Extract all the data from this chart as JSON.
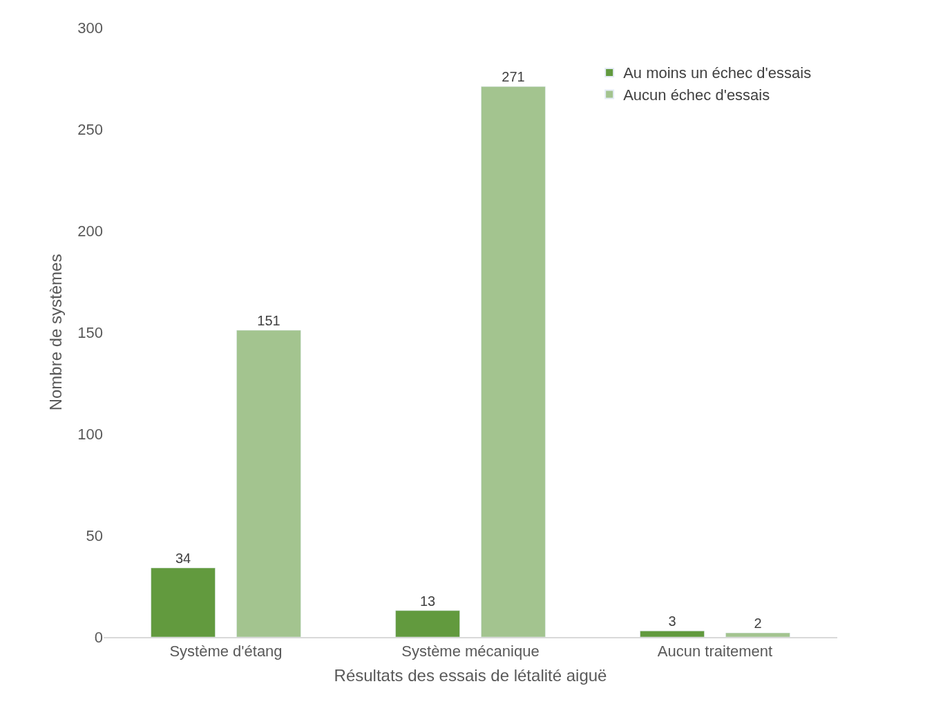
{
  "chart_data": {
    "type": "bar",
    "xlabel": "Résultats des essais de létalité aiguë",
    "ylabel": "Nombre de systèmes",
    "categories": [
      "Système d'étang",
      "Système mécanique",
      "Aucun traitement"
    ],
    "series": [
      {
        "name": "Au moins un échec d'essais",
        "color": "#629a3e",
        "values": [
          34,
          13,
          3
        ]
      },
      {
        "name": "Aucun échec d'essais",
        "color": "#a3c48f",
        "values": [
          151,
          271,
          2
        ]
      }
    ],
    "ylim": [
      0,
      300
    ],
    "yticks": [
      0,
      50,
      100,
      150,
      200,
      250,
      300
    ],
    "legend": "top right",
    "data_labels": true
  }
}
